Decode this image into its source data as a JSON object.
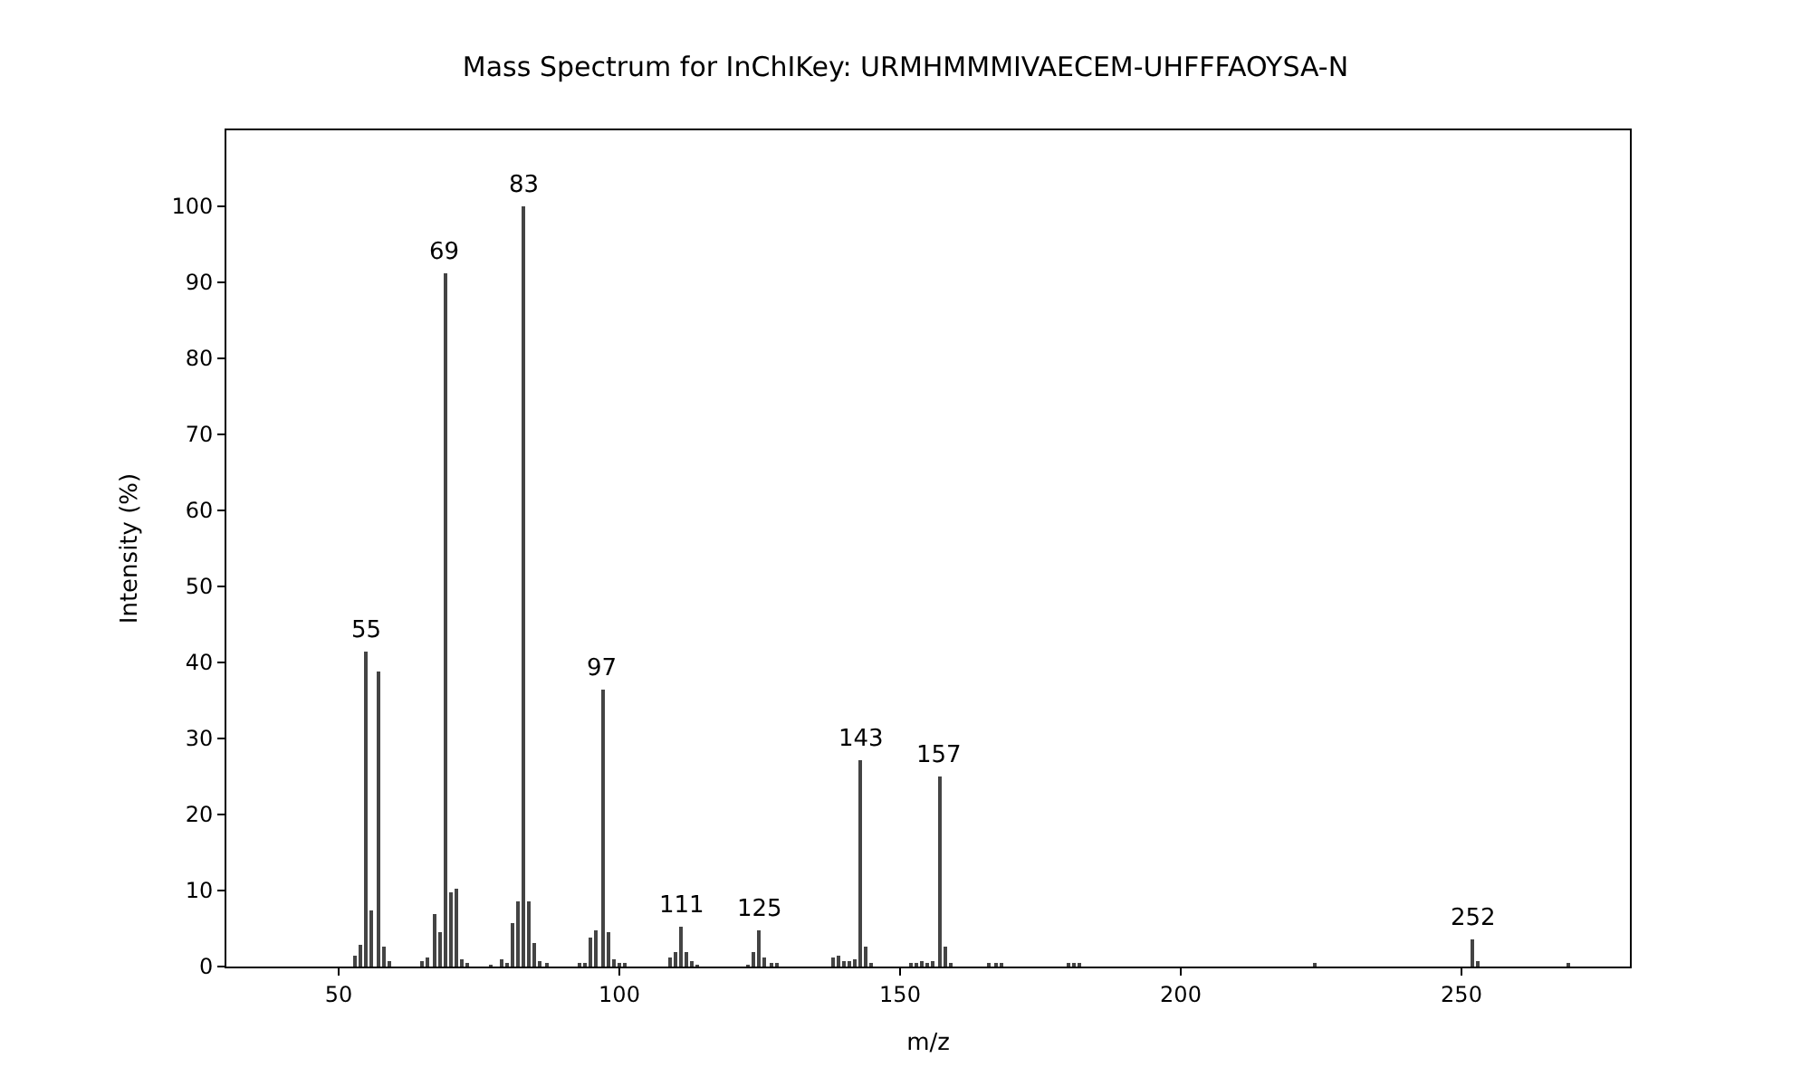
{
  "chart_data": {
    "type": "bar",
    "title": "Mass Spectrum for InChIKey: URMHMMMIVAECEM-UHFFFAOYSA-N",
    "xlabel": "m/z",
    "ylabel": "Intensity (%)",
    "x": [
      53,
      54,
      55,
      56,
      57,
      58,
      59,
      65,
      66,
      67,
      68,
      69,
      70,
      71,
      72,
      73,
      77,
      79,
      80,
      81,
      82,
      83,
      84,
      85,
      86,
      87,
      93,
      94,
      95,
      96,
      97,
      98,
      99,
      100,
      101,
      109,
      110,
      111,
      112,
      113,
      114,
      123,
      124,
      125,
      126,
      127,
      128,
      138,
      139,
      140,
      141,
      142,
      143,
      144,
      145,
      152,
      153,
      154,
      155,
      156,
      157,
      158,
      159,
      166,
      167,
      168,
      180,
      181,
      182,
      224,
      252,
      253,
      269
    ],
    "values": [
      1.5,
      2.9,
      41.5,
      7.4,
      38.7,
      2.7,
      0.7,
      0.6,
      1.2,
      6.8,
      4.6,
      91.2,
      9.8,
      10.3,
      1.0,
      0.5,
      0.2,
      0.9,
      0.5,
      5.7,
      8.6,
      100,
      8.6,
      3.1,
      0.6,
      0.3,
      0.3,
      0.3,
      3.8,
      4.8,
      36.5,
      4.5,
      1.0,
      0.3,
      0.3,
      1.2,
      2.0,
      5.2,
      2.0,
      0.6,
      0.2,
      0.2,
      2.0,
      4.8,
      1.2,
      0.5,
      0.3,
      1.2,
      1.5,
      0.8,
      0.6,
      1.0,
      27.2,
      2.6,
      0.3,
      0.4,
      0.5,
      0.6,
      0.4,
      0.7,
      24.9,
      2.6,
      0.3,
      0.3,
      0.3,
      0.3,
      0.3,
      0.3,
      0.3,
      0.5,
      3.6,
      0.7,
      0.5
    ],
    "annotations": [
      {
        "text": "55",
        "x": 55,
        "y": 41.5
      },
      {
        "text": "69",
        "x": 69,
        "y": 91.2
      },
      {
        "text": "83",
        "x": 83,
        "y": 100
      },
      {
        "text": "97",
        "x": 97,
        "y": 36.5
      },
      {
        "text": "111",
        "x": 111,
        "y": 5.2
      },
      {
        "text": "125",
        "x": 125,
        "y": 4.8
      },
      {
        "text": "143",
        "x": 143,
        "y": 27.2
      },
      {
        "text": "157",
        "x": 157,
        "y": 24.9
      },
      {
        "text": "252",
        "x": 252,
        "y": 3.6
      }
    ],
    "color": "#444444",
    "xlim": [
      30,
      280
    ],
    "xticks": [
      50,
      100,
      150,
      200,
      250
    ],
    "ylim": [
      0,
      110
    ],
    "yticks": [
      0,
      10,
      20,
      30,
      40,
      50,
      60,
      70,
      80,
      90,
      100
    ]
  }
}
